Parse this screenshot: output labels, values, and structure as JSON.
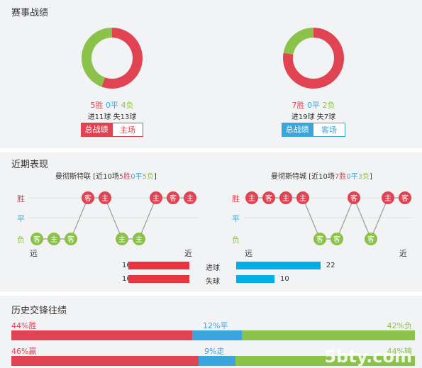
{
  "sections": {
    "record_title": "赛事战绩",
    "recent_title": "近期表现",
    "h2h_title": "历史交锋往绩"
  },
  "home": {
    "wins": "5胜",
    "draws": "0平",
    "losses": "4负",
    "goals": "进11球",
    "conceded": "失13球",
    "tab_total": "总战绩",
    "tab_side": "主场",
    "donut": {
      "win": 5,
      "draw": 0,
      "loss": 4
    }
  },
  "away": {
    "wins": "7胜",
    "draws": "0平",
    "losses": "2负",
    "goals": "进19球",
    "conceded": "失7球",
    "tab_total": "总战绩",
    "tab_side": "客场",
    "donut": {
      "win": 7,
      "draw": 0,
      "loss": 2
    }
  },
  "colors": {
    "win": "#e04452",
    "draw": "#3aa6dc",
    "loss": "#8bc34a",
    "goals_bar": "#e8343f",
    "conceded_bar": "#00aee8"
  },
  "recent": {
    "axis_win": "胜",
    "axis_draw": "平",
    "axis_loss": "负",
    "far": "远",
    "near": "近",
    "left": {
      "team": "曼彻斯特联",
      "summary_prefix": "[近10场",
      "w": "5胜",
      "d": "0平",
      "l": "5负",
      "summary_suffix": "]",
      "results": [
        {
          "r": "L",
          "v": "客"
        },
        {
          "r": "L",
          "v": "主"
        },
        {
          "r": "L",
          "v": "客"
        },
        {
          "r": "W",
          "v": "客"
        },
        {
          "r": "W",
          "v": "主"
        },
        {
          "r": "L",
          "v": "主"
        },
        {
          "r": "L",
          "v": "主"
        },
        {
          "r": "W",
          "v": "主"
        },
        {
          "r": "W",
          "v": "客"
        },
        {
          "r": "W",
          "v": "主"
        }
      ]
    },
    "right": {
      "team": "曼彻斯特城",
      "summary_prefix": "[近10场",
      "w": "7胜",
      "d": "0平",
      "l": "3负",
      "summary_suffix": "]",
      "results": [
        {
          "r": "W",
          "v": "主"
        },
        {
          "r": "W",
          "v": "客"
        },
        {
          "r": "W",
          "v": "主"
        },
        {
          "r": "W",
          "v": "主"
        },
        {
          "r": "L",
          "v": "客"
        },
        {
          "r": "L",
          "v": "客"
        },
        {
          "r": "W",
          "v": "客"
        },
        {
          "r": "L",
          "v": "客"
        },
        {
          "r": "W",
          "v": "主"
        },
        {
          "r": "W",
          "v": "客"
        }
      ]
    },
    "goals_label": "进球",
    "conceded_label": "失球",
    "home_goals": 16,
    "home_conceded": 16,
    "away_goals": 22,
    "away_conceded": 10
  },
  "h2h": {
    "row1": {
      "win": "44%胜",
      "draw": "12%平",
      "loss": "42%负",
      "values": [
        44,
        12,
        42
      ]
    },
    "row2": {
      "win": "46%赢",
      "draw": "9%走",
      "loss": "44%输",
      "values": [
        46,
        9,
        44
      ]
    }
  },
  "watermark": "5bty.com"
}
